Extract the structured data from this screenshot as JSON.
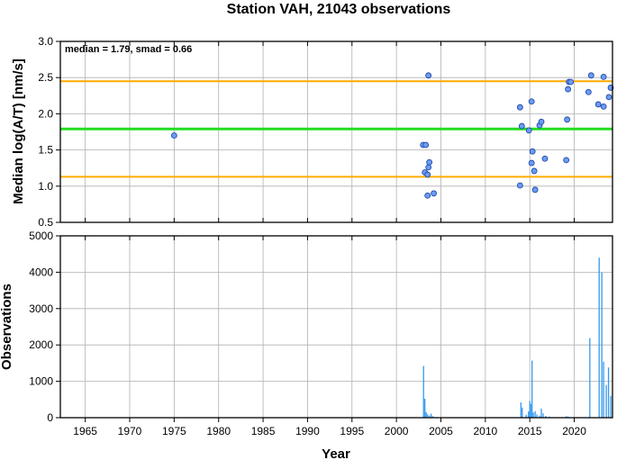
{
  "title": "Station VAH, 21043 observations",
  "annotation": "median = 1.79, smad = 0.66",
  "xlabel": "Year",
  "colors": {
    "median_line": "#22dd22",
    "smad_lines": "#ffaa00",
    "points": "#6a9cf5",
    "bars": "#3399ee",
    "grid": "#b0b0b0"
  },
  "chart_data": [
    {
      "type": "scatter",
      "ylabel": "Median log(A/T) [nm/s]",
      "xlim": [
        1962.2,
        2024.3
      ],
      "ylim": [
        0.5,
        3.0
      ],
      "x_ticks": [
        1965,
        1970,
        1975,
        1980,
        1985,
        1990,
        1995,
        2000,
        2005,
        2010,
        2015,
        2020
      ],
      "y_ticks": [
        "0.5",
        "1.0",
        "1.5",
        "2.0",
        "2.5",
        "3.0"
      ],
      "grid": true,
      "hlines": [
        {
          "name": "median",
          "y": 1.79
        },
        {
          "name": "median + smad",
          "y": 2.45
        },
        {
          "name": "median - smad",
          "y": 1.13
        }
      ],
      "points": [
        {
          "x": 1975.0,
          "y": 1.7
        },
        {
          "x": 2003.0,
          "y": 1.57
        },
        {
          "x": 2003.3,
          "y": 1.57
        },
        {
          "x": 2003.2,
          "y": 1.19
        },
        {
          "x": 2003.5,
          "y": 1.16
        },
        {
          "x": 2003.6,
          "y": 1.26
        },
        {
          "x": 2003.7,
          "y": 1.33
        },
        {
          "x": 2003.5,
          "y": 0.87
        },
        {
          "x": 2004.2,
          "y": 0.9
        },
        {
          "x": 2003.6,
          "y": 2.53
        },
        {
          "x": 2013.9,
          "y": 2.09
        },
        {
          "x": 2014.1,
          "y": 1.83
        },
        {
          "x": 2013.9,
          "y": 1.01
        },
        {
          "x": 2014.9,
          "y": 1.77
        },
        {
          "x": 2015.2,
          "y": 1.32
        },
        {
          "x": 2015.3,
          "y": 1.48
        },
        {
          "x": 2015.5,
          "y": 1.21
        },
        {
          "x": 2015.6,
          "y": 0.95
        },
        {
          "x": 2015.2,
          "y": 2.17
        },
        {
          "x": 2016.1,
          "y": 1.84
        },
        {
          "x": 2016.3,
          "y": 1.89
        },
        {
          "x": 2016.7,
          "y": 1.38
        },
        {
          "x": 2019.1,
          "y": 1.36
        },
        {
          "x": 2019.2,
          "y": 1.92
        },
        {
          "x": 2019.3,
          "y": 2.34
        },
        {
          "x": 2019.4,
          "y": 2.44
        },
        {
          "x": 2019.6,
          "y": 2.44
        },
        {
          "x": 2021.6,
          "y": 2.3
        },
        {
          "x": 2021.9,
          "y": 2.53
        },
        {
          "x": 2022.7,
          "y": 2.13
        },
        {
          "x": 2023.3,
          "y": 2.51
        },
        {
          "x": 2023.3,
          "y": 2.1
        },
        {
          "x": 2023.9,
          "y": 2.23
        },
        {
          "x": 2024.1,
          "y": 2.36
        }
      ]
    },
    {
      "type": "bar",
      "ylabel": "Observations",
      "xlim": [
        1962.2,
        2024.3
      ],
      "ylim": [
        0,
        5000
      ],
      "x_ticks": [
        1965,
        1970,
        1975,
        1980,
        1985,
        1990,
        1995,
        2000,
        2005,
        2010,
        2015,
        2020
      ],
      "y_ticks": [
        "0",
        "1000",
        "2000",
        "3000",
        "4000",
        "5000"
      ],
      "grid": true,
      "bars": [
        {
          "x": 2003.05,
          "y": 1420
        },
        {
          "x": 2003.2,
          "y": 520
        },
        {
          "x": 2003.35,
          "y": 150
        },
        {
          "x": 2003.5,
          "y": 90
        },
        {
          "x": 2003.7,
          "y": 60
        },
        {
          "x": 2003.9,
          "y": 110
        },
        {
          "x": 2004.1,
          "y": 40
        },
        {
          "x": 2014.0,
          "y": 420
        },
        {
          "x": 2014.15,
          "y": 280
        },
        {
          "x": 2014.6,
          "y": 80
        },
        {
          "x": 2014.85,
          "y": 170
        },
        {
          "x": 2015.0,
          "y": 460
        },
        {
          "x": 2015.1,
          "y": 380
        },
        {
          "x": 2015.25,
          "y": 1570
        },
        {
          "x": 2015.4,
          "y": 140
        },
        {
          "x": 2015.6,
          "y": 180
        },
        {
          "x": 2015.8,
          "y": 90
        },
        {
          "x": 2016.1,
          "y": 60
        },
        {
          "x": 2016.3,
          "y": 250
        },
        {
          "x": 2016.5,
          "y": 120
        },
        {
          "x": 2016.8,
          "y": 50
        },
        {
          "x": 2017.2,
          "y": 30
        },
        {
          "x": 2019.1,
          "y": 40
        },
        {
          "x": 2019.3,
          "y": 30
        },
        {
          "x": 2021.75,
          "y": 2190
        },
        {
          "x": 2022.8,
          "y": 4400
        },
        {
          "x": 2023.1,
          "y": 3990
        },
        {
          "x": 2023.3,
          "y": 1540
        },
        {
          "x": 2023.6,
          "y": 900
        },
        {
          "x": 2023.85,
          "y": 1380
        },
        {
          "x": 2024.1,
          "y": 600
        }
      ]
    }
  ]
}
